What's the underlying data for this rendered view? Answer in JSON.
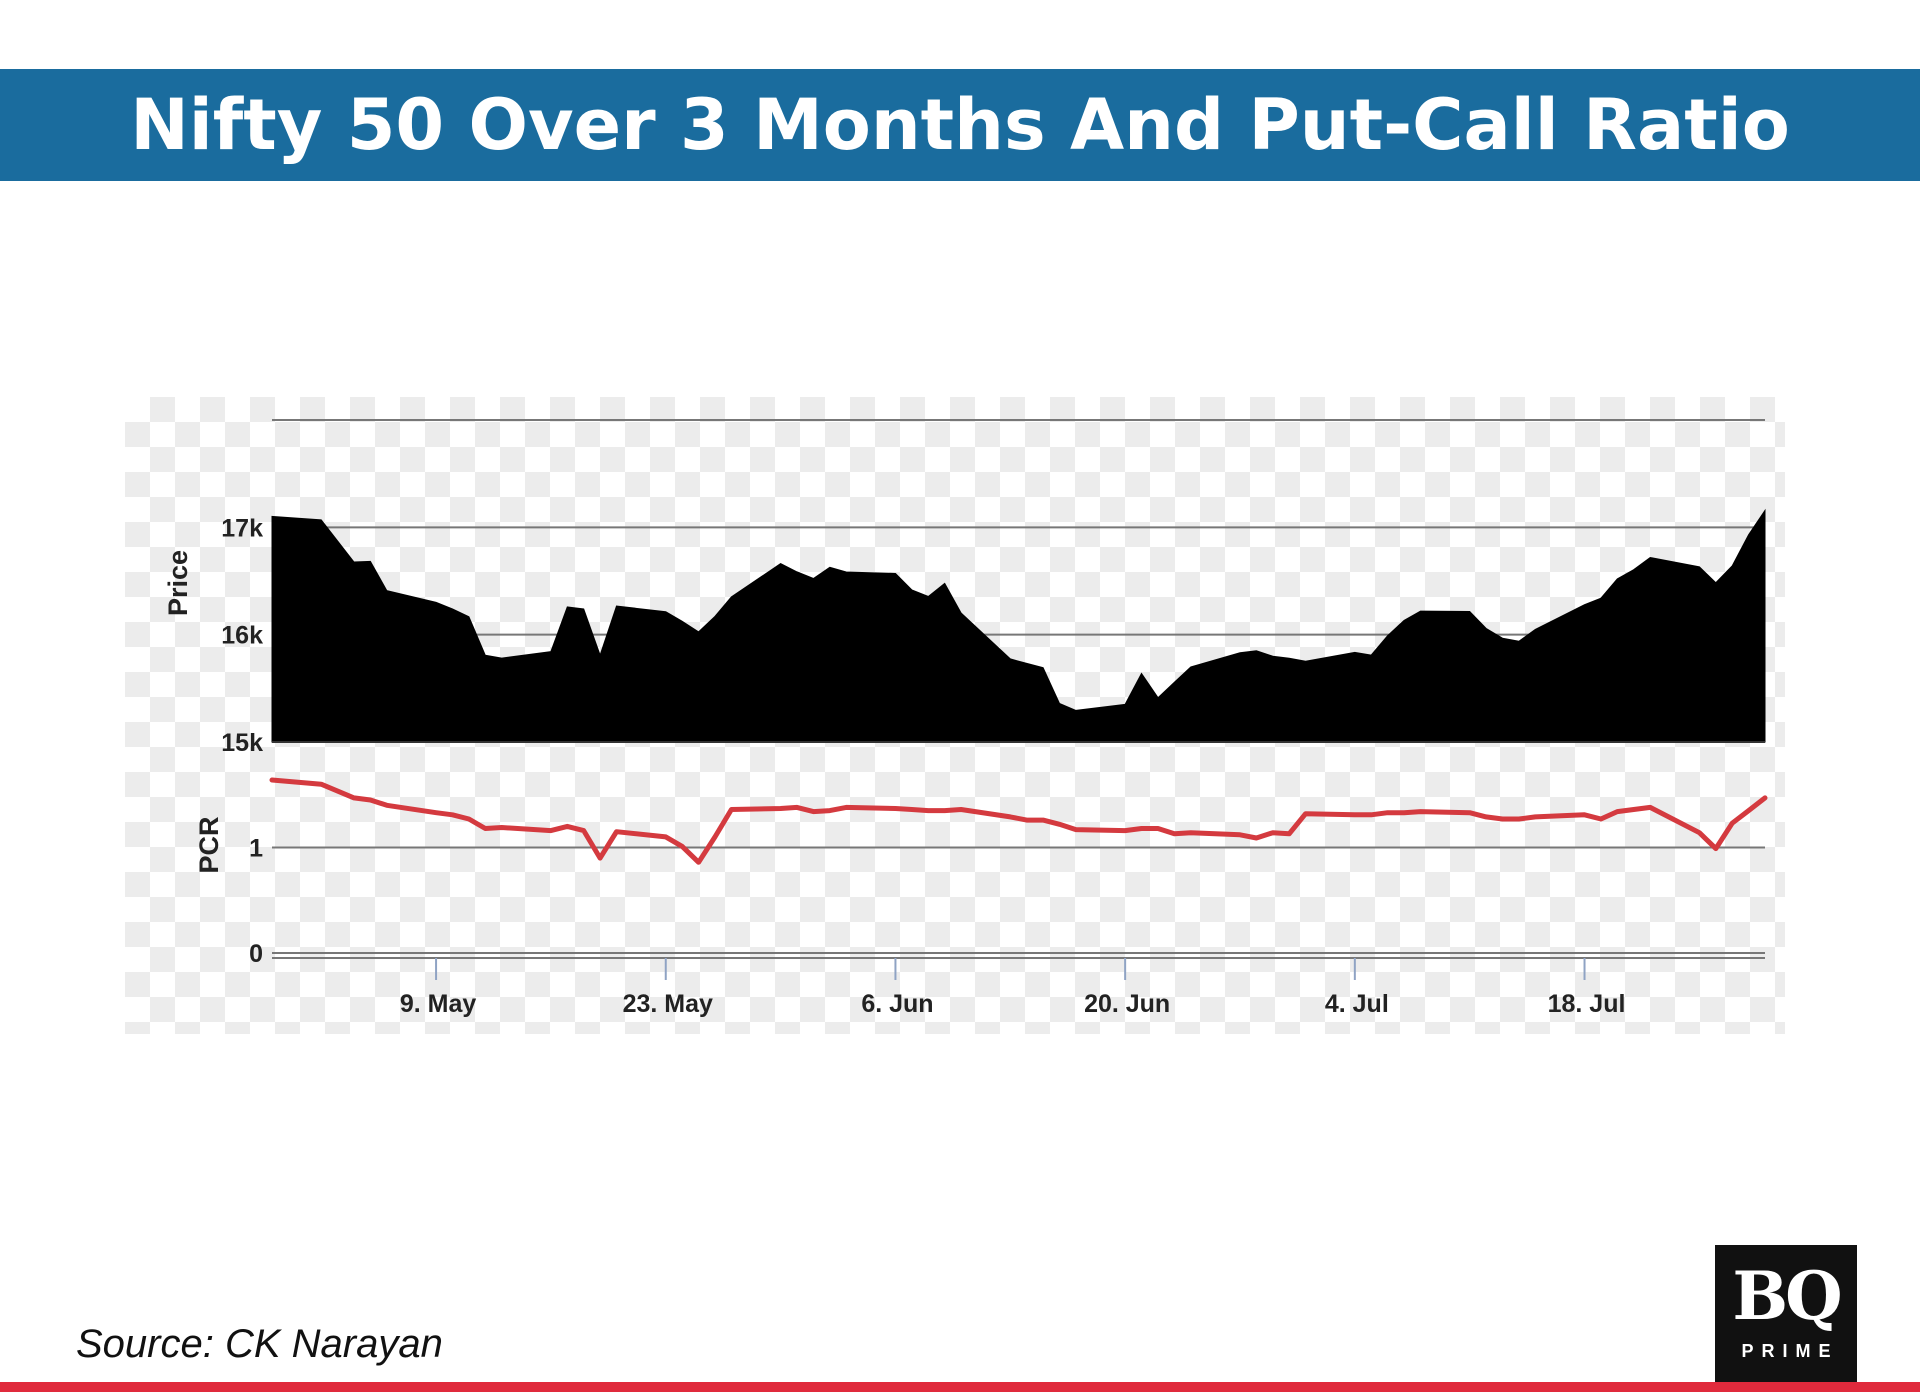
{
  "header": {
    "title": "Nifty 50 Over 3 Months And Put-Call Ratio"
  },
  "footer": {
    "source": "Source: CK Narayan"
  },
  "logo": {
    "main": "BQ",
    "sub": "PRIME"
  },
  "colors": {
    "title_bar": "#1a6c9e",
    "price_fill": "#000000",
    "pcr_line": "#d43a3f",
    "bottom_rule": "#e02a3c"
  },
  "chart_data": {
    "type": "area",
    "x_axis": {
      "range": [
        "2022-04-29",
        "2022-07-29"
      ],
      "tick_labels": [
        {
          "label": "9. May",
          "date": "2022-05-09"
        },
        {
          "label": "23. May",
          "date": "2022-05-23"
        },
        {
          "label": "6. Jun",
          "date": "2022-06-06"
        },
        {
          "label": "20. Jun",
          "date": "2022-06-20"
        },
        {
          "label": "4. Jul",
          "date": "2022-07-04"
        },
        {
          "label": "18. Jul",
          "date": "2022-07-18"
        }
      ]
    },
    "price_panel": {
      "ylabel": "Price",
      "ylim": [
        15000,
        18000
      ],
      "y_ticks": [
        {
          "value": 15000,
          "label": "15k"
        },
        {
          "value": 16000,
          "label": "16k"
        },
        {
          "value": 17000,
          "label": "17k"
        }
      ],
      "series": [
        {
          "x": [
            "2022-04-29",
            "2022-05-02",
            "2022-05-04",
            "2022-05-05",
            "2022-05-06",
            "2022-05-09",
            "2022-05-10",
            "2022-05-11",
            "2022-05-12",
            "2022-05-13",
            "2022-05-16",
            "2022-05-17",
            "2022-05-18",
            "2022-05-19",
            "2022-05-20",
            "2022-05-23",
            "2022-05-24",
            "2022-05-25",
            "2022-05-26",
            "2022-05-27",
            "2022-05-30",
            "2022-05-31",
            "2022-06-01",
            "2022-06-02",
            "2022-06-03",
            "2022-06-06",
            "2022-06-07",
            "2022-06-08",
            "2022-06-09",
            "2022-06-10",
            "2022-06-13",
            "2022-06-14",
            "2022-06-15",
            "2022-06-16",
            "2022-06-17",
            "2022-06-20",
            "2022-06-21",
            "2022-06-22",
            "2022-06-23",
            "2022-06-24",
            "2022-06-27",
            "2022-06-28",
            "2022-06-29",
            "2022-06-30",
            "2022-07-01",
            "2022-07-04",
            "2022-07-05",
            "2022-07-06",
            "2022-07-07",
            "2022-07-08",
            "2022-07-11",
            "2022-07-12",
            "2022-07-13",
            "2022-07-14",
            "2022-07-15",
            "2022-07-18",
            "2022-07-19",
            "2022-07-20",
            "2022-07-21",
            "2022-07-22",
            "2022-07-25",
            "2022-07-26",
            "2022-07-27",
            "2022-07-28",
            "2022-07-29"
          ],
          "values": [
            17102,
            17069,
            16677,
            16683,
            16411,
            16301,
            16240,
            16167,
            15808,
            15782,
            15842,
            16259,
            16240,
            15810,
            16266,
            16214,
            16125,
            16026,
            16171,
            16352,
            16662,
            16585,
            16523,
            16628,
            16584,
            16570,
            16416,
            16356,
            16478,
            16202,
            15774,
            15732,
            15692,
            15360,
            15294,
            15350,
            15638,
            15413,
            15557,
            15699,
            15832,
            15850,
            15799,
            15780,
            15752,
            15835,
            15810,
            15990,
            16133,
            16220,
            16216,
            16058,
            15967,
            15938,
            16049,
            16279,
            16340,
            16520,
            16605,
            16719,
            16632,
            16484,
            16642,
            16930,
            17158
          ]
        }
      ]
    },
    "pcr_panel": {
      "ylabel": "PCR",
      "ylim": [
        0,
        2
      ],
      "y_ticks": [
        {
          "value": 0,
          "label": "0"
        },
        {
          "value": 1,
          "label": "1"
        }
      ],
      "series": [
        {
          "x": [
            "2022-04-29",
            "2022-05-02",
            "2022-05-04",
            "2022-05-05",
            "2022-05-06",
            "2022-05-09",
            "2022-05-10",
            "2022-05-11",
            "2022-05-12",
            "2022-05-13",
            "2022-05-16",
            "2022-05-17",
            "2022-05-18",
            "2022-05-19",
            "2022-05-20",
            "2022-05-23",
            "2022-05-24",
            "2022-05-25",
            "2022-05-26",
            "2022-05-27",
            "2022-05-30",
            "2022-05-31",
            "2022-06-01",
            "2022-06-02",
            "2022-06-03",
            "2022-06-06",
            "2022-06-07",
            "2022-06-08",
            "2022-06-09",
            "2022-06-10",
            "2022-06-13",
            "2022-06-14",
            "2022-06-15",
            "2022-06-16",
            "2022-06-17",
            "2022-06-20",
            "2022-06-21",
            "2022-06-22",
            "2022-06-23",
            "2022-06-24",
            "2022-06-27",
            "2022-06-28",
            "2022-06-29",
            "2022-06-30",
            "2022-07-01",
            "2022-07-04",
            "2022-07-05",
            "2022-07-06",
            "2022-07-07",
            "2022-07-08",
            "2022-07-11",
            "2022-07-12",
            "2022-07-13",
            "2022-07-14",
            "2022-07-15",
            "2022-07-18",
            "2022-07-19",
            "2022-07-20",
            "2022-07-21",
            "2022-07-22",
            "2022-07-25",
            "2022-07-26",
            "2022-07-27",
            "2022-07-28",
            "2022-07-29"
          ],
          "values": [
            1.64,
            1.6,
            1.47,
            1.45,
            1.4,
            1.33,
            1.31,
            1.27,
            1.18,
            1.19,
            1.16,
            1.2,
            1.16,
            0.9,
            1.15,
            1.1,
            1.01,
            0.86,
            1.1,
            1.36,
            1.37,
            1.38,
            1.34,
            1.35,
            1.38,
            1.37,
            1.36,
            1.35,
            1.35,
            1.36,
            1.29,
            1.26,
            1.26,
            1.22,
            1.17,
            1.16,
            1.18,
            1.18,
            1.13,
            1.14,
            1.12,
            1.09,
            1.14,
            1.13,
            1.32,
            1.31,
            1.31,
            1.33,
            1.33,
            1.34,
            1.33,
            1.29,
            1.27,
            1.27,
            1.29,
            1.31,
            1.27,
            1.34,
            1.36,
            1.38,
            1.14,
            0.99,
            1.23,
            1.35,
            1.47
          ]
        }
      ]
    }
  }
}
